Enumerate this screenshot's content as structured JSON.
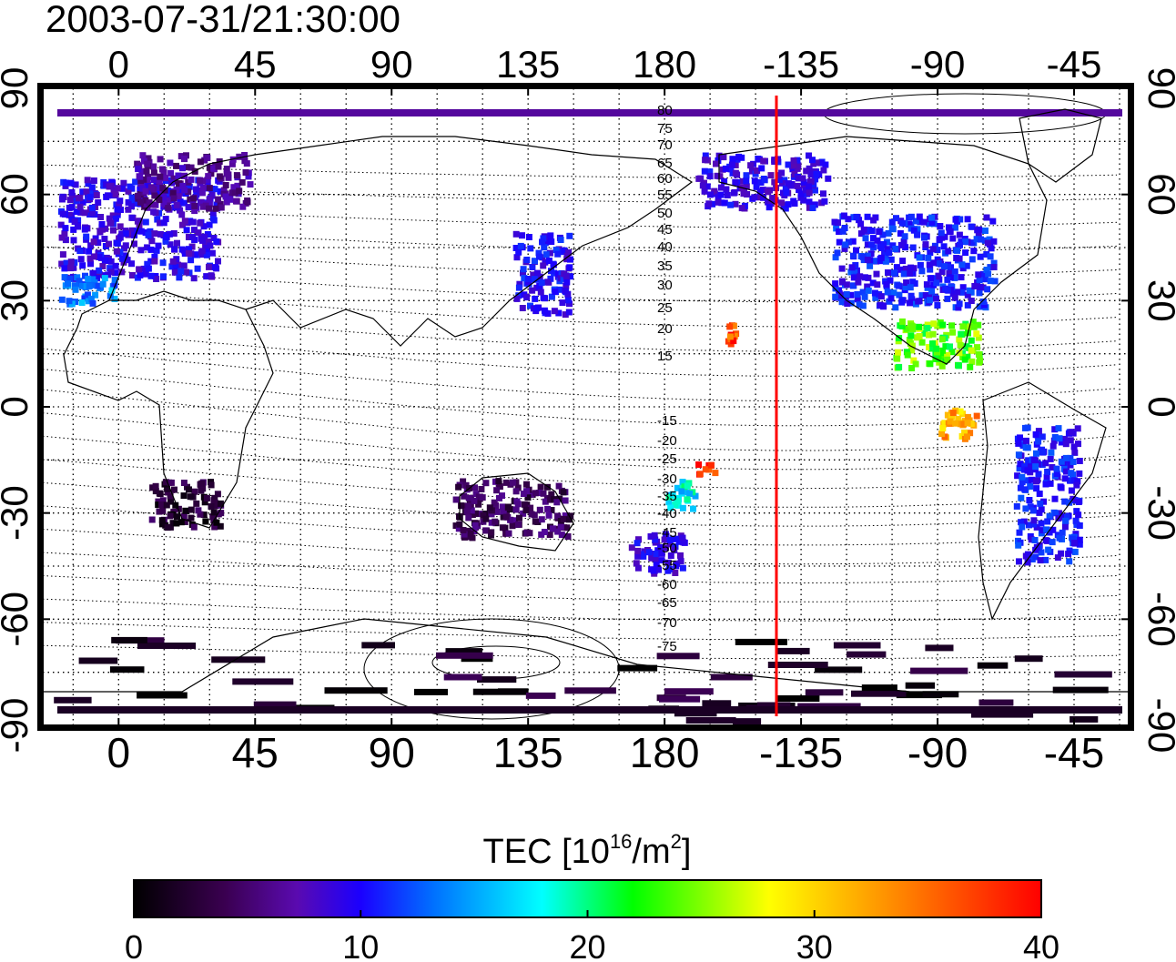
{
  "timestamp": "2003-07-31/21:30:00",
  "map": {
    "lon_tick_labels": [
      "0",
      "45",
      "90",
      "135",
      "180",
      "-135",
      "-90",
      "-45"
    ],
    "lat_tick_labels": [
      "90",
      "60",
      "30",
      "0",
      "-30",
      "-60",
      "-90"
    ],
    "contour_labels_north": [
      "80",
      "75",
      "70",
      "65",
      "60",
      "55",
      "50",
      "45",
      "40",
      "35",
      "30",
      "25",
      "20",
      "15"
    ],
    "contour_labels_south": [
      "-15",
      "-20",
      "-25",
      "-30",
      "-35",
      "-40",
      "-45",
      "-50",
      "-55",
      "-60",
      "-65",
      "-70",
      "-75"
    ],
    "terminator_color": "#ff0000",
    "gridlines": "dotted"
  },
  "colorbar": {
    "title_prefix": "TEC  [10",
    "title_exp1": "16",
    "title_mid": "/m",
    "title_exp2": "2",
    "title_suffix": "]",
    "tick_labels": [
      "0",
      "10",
      "20",
      "30",
      "40"
    ],
    "colormap": [
      "#000000",
      "#3a0050",
      "#5a0ab0",
      "#1b00ff",
      "#0070ff",
      "#00ffff",
      "#00ff00",
      "#ffff00",
      "#ff8000",
      "#ff0000"
    ]
  },
  "chart_data": {
    "type": "heatmap",
    "title": "2003-07-31/21:30:00",
    "variable": "TEC",
    "units": "10^16/m^2",
    "value_range": [
      0,
      40
    ],
    "xlim_longitude": [
      -25,
      333
    ],
    "ylim_latitude": [
      -90,
      90
    ],
    "terminator_longitude": -143,
    "regions": [
      {
        "lon": [
          -20,
          35
        ],
        "lat": [
          35,
          65
        ],
        "tec": 12
      },
      {
        "lon": [
          -20,
          0
        ],
        "lat": [
          28,
          38
        ],
        "tec": 18
      },
      {
        "lon": [
          5,
          45
        ],
        "lat": [
          55,
          72
        ],
        "tec": 8
      },
      {
        "lon": [
          130,
          150
        ],
        "lat": [
          25,
          50
        ],
        "tec": 13
      },
      {
        "lon": [
          190,
          235
        ],
        "lat": [
          55,
          72
        ],
        "tec": 12
      },
      {
        "lon": [
          235,
          290
        ],
        "lat": [
          27,
          55
        ],
        "tec": 14
      },
      {
        "lon": [
          255,
          285
        ],
        "lat": [
          10,
          25
        ],
        "tec": 28
      },
      {
        "lon": [
          200,
          205
        ],
        "lat": [
          15,
          25
        ],
        "tec": 38
      },
      {
        "lon": [
          180,
          192
        ],
        "lat": [
          -30,
          -20
        ],
        "tec": 22
      },
      {
        "lon": [
          190,
          198
        ],
        "lat": [
          -20,
          -15
        ],
        "tec": 39
      },
      {
        "lon": [
          168,
          188
        ],
        "lat": [
          -48,
          -35
        ],
        "tec": 12
      },
      {
        "lon": [
          295,
          318
        ],
        "lat": [
          -45,
          -5
        ],
        "tec": 14
      },
      {
        "lon": [
          270,
          285
        ],
        "lat": [
          -10,
          0
        ],
        "tec": 34
      },
      {
        "lon": [
          10,
          35
        ],
        "lat": [
          -35,
          -20
        ],
        "tec": 3
      },
      {
        "lon": [
          110,
          150
        ],
        "lat": [
          -38,
          -20
        ],
        "tec": 5
      },
      {
        "lon": [
          -25,
          333
        ],
        "lat": [
          -90,
          -65
        ],
        "tec": 2
      }
    ]
  }
}
